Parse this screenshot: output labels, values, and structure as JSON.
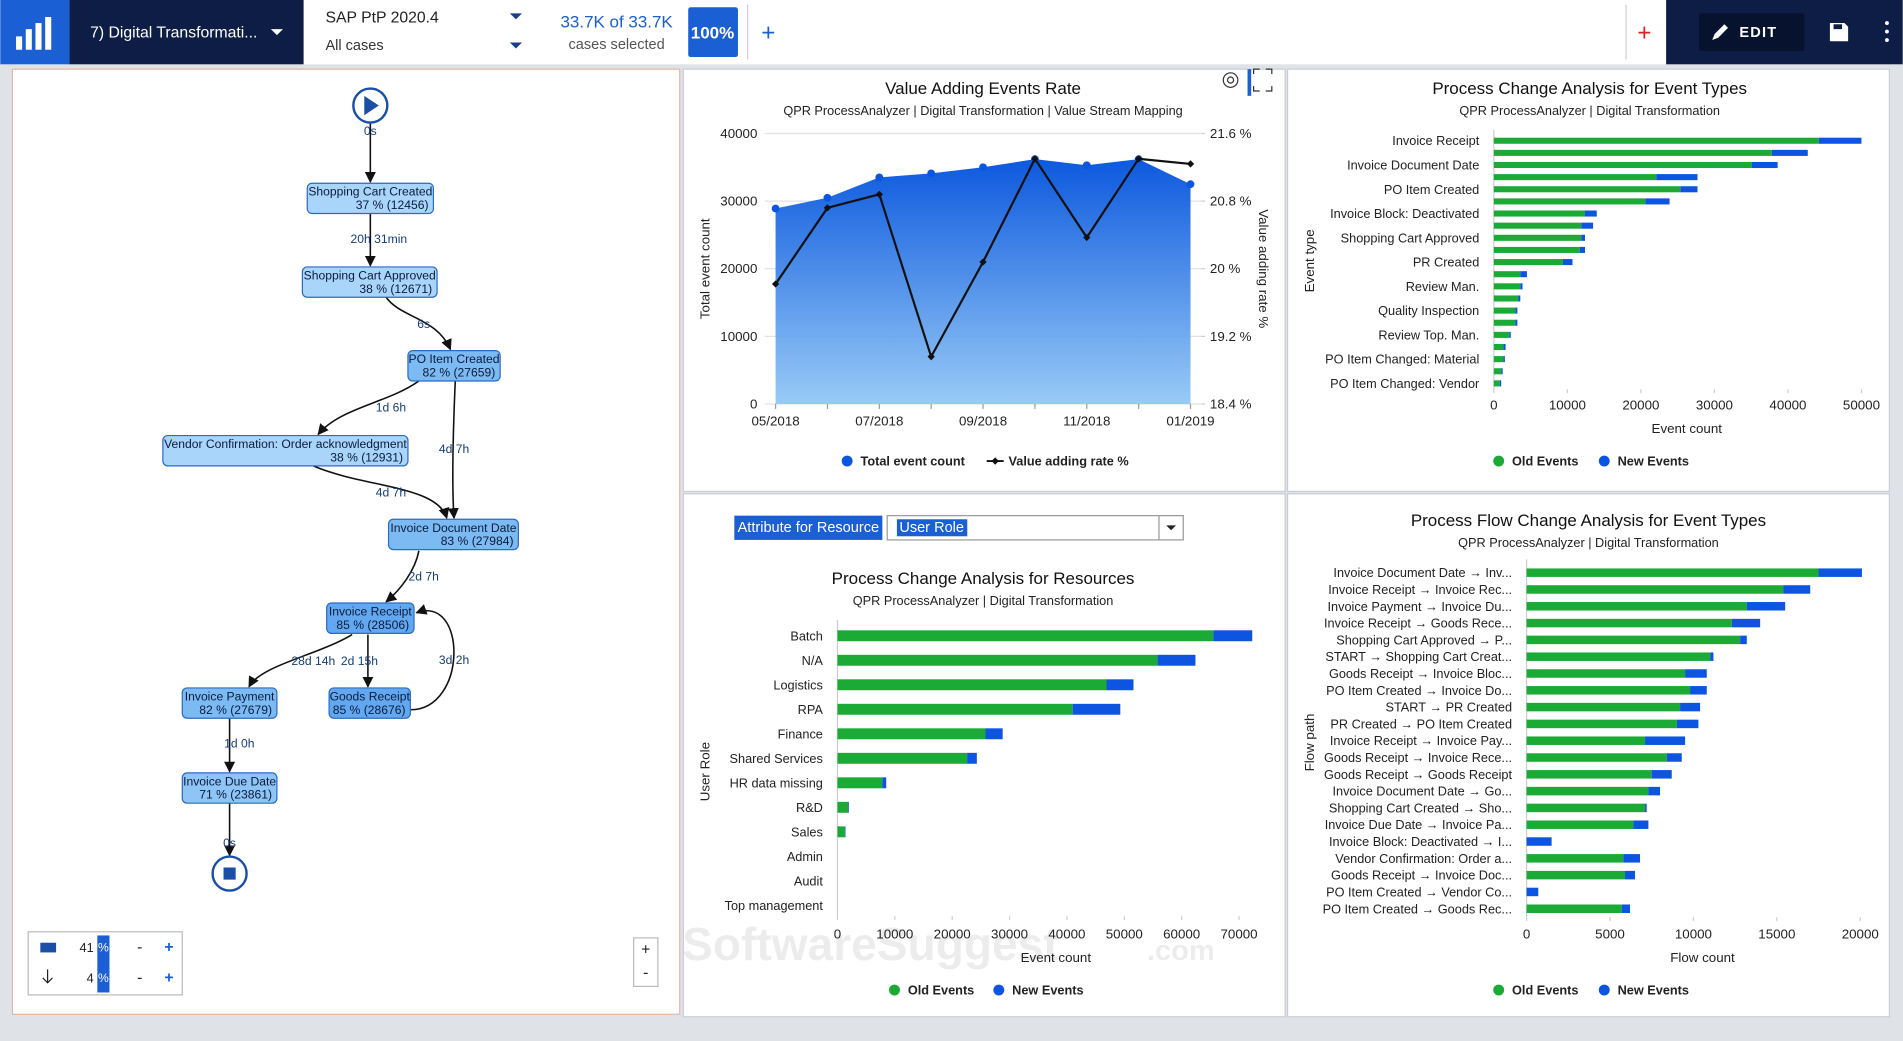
{
  "toolbar": {
    "dashboard": "7) Digital Transformati...",
    "model": "SAP PtP 2020.4",
    "filter": "All cases",
    "selection": "33.7K of 33.7K",
    "selection_caption": "cases selected",
    "selection_percent": "100%",
    "add": "+",
    "add_red": "+",
    "edit": "EDIT"
  },
  "process_map": {
    "nodes": [
      {
        "label": "Shopping Cart Created",
        "stat": "37 % (12456)"
      },
      {
        "label": "Shopping Cart Approved",
        "stat": "38 % (12671)"
      },
      {
        "label": "PO Item Created",
        "stat": "82 % (27659)"
      },
      {
        "label": "Vendor Confirmation: Order acknowledgment",
        "stat": "38 % (12931)"
      },
      {
        "label": "Invoice Document Date",
        "stat": "83 % (27984)"
      },
      {
        "label": "Invoice Receipt",
        "stat": "85 % (28506)"
      },
      {
        "label": "Invoice Payment",
        "stat": "82 % (27679)"
      },
      {
        "label": "Goods Receipt",
        "stat": "85 % (28676)"
      },
      {
        "label": "Invoice Due Date",
        "stat": "71 % (23861)"
      }
    ],
    "edge_labels": [
      "0s",
      "20h 31min",
      "6s",
      "1d 6h",
      "4d 7h",
      "4d 7h",
      "2d 7h",
      "28d 14h",
      "2d 15h",
      "3d 2h",
      "1d 0h",
      "0s"
    ],
    "zoom": {
      "level": "41",
      "detail": "4",
      "unit": "%",
      "minus": "-",
      "plus": "+"
    },
    "zoom_in": "+",
    "zoom_out": "-"
  },
  "resource_filter": {
    "label": "Attribute for Resource",
    "value": "User Role"
  },
  "watermark": {
    "text": "SoftwareSuggest",
    "suffix": ".com"
  },
  "chart_data": [
    {
      "type": "combo",
      "title": "Value Adding Events Rate",
      "subtitle": "QPR ProcessAnalyzer | Digital Transformation | Value Stream Mapping",
      "categories": [
        "05/2018",
        null,
        "07/2018",
        null,
        "09/2018",
        null,
        "11/2018",
        null,
        "01/2019"
      ],
      "y_label": "Total event count",
      "y2_label": "Value adding rate %",
      "series": [
        {
          "name": "Total event count",
          "kind": "area",
          "color": "#0a56e0",
          "values": [
            28900,
            30500,
            33500,
            34100,
            35000,
            36200,
            35300,
            36200,
            32500
          ]
        },
        {
          "name": "Value adding rate %",
          "kind": "line",
          "axis": "y2",
          "color": "#111111",
          "values": [
            19.82,
            20.72,
            20.88,
            18.96,
            20.08,
            21.3,
            20.37,
            21.3,
            21.24
          ]
        }
      ],
      "ylim": [
        0,
        40000
      ],
      "yticks": [
        0,
        10000,
        20000,
        30000,
        40000
      ],
      "y2lim": [
        18.4,
        21.6
      ],
      "y2ticks": [
        {
          "value": 18.4,
          "label": "18.4 %"
        },
        {
          "value": 19.2,
          "label": "19.2 %"
        },
        {
          "value": 20,
          "label": "20 %"
        },
        {
          "value": 20.8,
          "label": "20.8 %"
        },
        {
          "value": 21.6,
          "label": "21.6 %"
        }
      ],
      "grid": true,
      "legend": "bottom"
    },
    {
      "type": "bar",
      "orientation": "horizontal",
      "stacked": true,
      "title": "Process Change Analysis for Event Types",
      "subtitle": "QPR ProcessAnalyzer | Digital Transformation",
      "x_label": "Event count",
      "y_label": "Event type",
      "categories": [
        "Invoice Receipt",
        null,
        "Invoice Document Date",
        null,
        "PO Item Created",
        null,
        "Invoice Block: Deactivated",
        null,
        "Shopping Cart Approved",
        null,
        "PR Created",
        null,
        "Review Man.",
        null,
        "Quality Inspection",
        null,
        "Review Top. Man.",
        null,
        "PO Item Changed: Material",
        null,
        "PO Item Changed: Vendor"
      ],
      "series": [
        {
          "name": "Old Events",
          "color": "#1aaa35",
          "values": [
            44200,
            37800,
            35100,
            22100,
            25400,
            20600,
            12400,
            11900,
            11900,
            11700,
            9400,
            3600,
            3600,
            3300,
            2900,
            2900,
            2100,
            1300,
            1300,
            1000,
            800
          ]
        },
        {
          "name": "New Events",
          "color": "#0d55e1",
          "values": [
            5800,
            4900,
            3500,
            5600,
            2300,
            3300,
            1600,
            1600,
            500,
            700,
            1300,
            900,
            300,
            300,
            300,
            300,
            200,
            300,
            200,
            200,
            200
          ]
        }
      ],
      "xlim": [
        0,
        50000
      ],
      "xticks": [
        0,
        10000,
        20000,
        30000,
        40000,
        50000
      ],
      "grid": false,
      "legend": "bottom"
    },
    {
      "type": "bar",
      "orientation": "horizontal",
      "stacked": true,
      "title": "Process Change Analysis for Resources",
      "subtitle": "QPR ProcessAnalyzer | Digital Transformation",
      "x_label": "Event count",
      "y_label": "User Role",
      "categories": [
        "Batch",
        "N/A",
        "Logistics",
        "RPA",
        "Finance",
        "Shared Services",
        "HR data missing",
        "R&D",
        "Sales",
        "Admin",
        "Audit",
        "Top management"
      ],
      "series": [
        {
          "name": "Old Events",
          "color": "#1aaa35",
          "values": [
            65500,
            55800,
            46900,
            41000,
            25800,
            22600,
            7800,
            1900,
            1300,
            0,
            0,
            0
          ]
        },
        {
          "name": "New Events",
          "color": "#0d55e1",
          "values": [
            6800,
            6600,
            4700,
            8300,
            3000,
            1700,
            700,
            100,
            100,
            0,
            0,
            0
          ]
        }
      ],
      "xlim": [
        0,
        70000
      ],
      "xticks": [
        0,
        10000,
        20000,
        30000,
        40000,
        50000,
        60000,
        70000
      ],
      "grid": false,
      "legend": "bottom"
    },
    {
      "type": "bar",
      "orientation": "horizontal",
      "stacked": true,
      "title": "Process Flow Change Analysis for Event Types",
      "subtitle": "QPR ProcessAnalyzer | Digital Transformation",
      "x_label": "Flow count",
      "y_label": "Flow path",
      "categories": [
        "Invoice Document Date → Inv...",
        "Invoice Receipt → Invoice Rec...",
        "Invoice Payment → Invoice Du...",
        "Invoice Receipt → Goods Rece...",
        "Shopping Cart Approved → P...",
        "START → Shopping Cart Creat...",
        "Goods Receipt → Invoice Bloc...",
        "PO Item Created → Invoice Do...",
        "START → PR Created",
        "PR Created → PO Item Created",
        "Invoice Receipt → Invoice Pay...",
        "Goods Receipt → Invoice Rece...",
        "Goods Receipt → Goods Receipt",
        "Invoice Document Date → Go...",
        "Shopping Cart Created → Sho...",
        "Invoice Due Date → Invoice Pa...",
        "Invoice Block: Deactivated → I...",
        "Vendor Confirmation: Order a...",
        "Goods Receipt → Invoice Doc...",
        "PO Item Created → Vendor Co...",
        "PO Item Created → Goods Rec..."
      ],
      "series": [
        {
          "name": "Old Events",
          "color": "#1aaa35",
          "values": [
            17500,
            15400,
            13200,
            12300,
            12800,
            11000,
            9500,
            9800,
            9200,
            9000,
            7100,
            8400,
            7500,
            7300,
            7100,
            6400,
            0,
            5800,
            5900,
            0,
            5700
          ]
        },
        {
          "name": "New Events",
          "color": "#0d55e1",
          "values": [
            2600,
            1600,
            2300,
            1700,
            400,
            200,
            1300,
            1000,
            1200,
            1300,
            2400,
            900,
            1200,
            700,
            100,
            900,
            1500,
            1000,
            600,
            700,
            500
          ]
        }
      ],
      "xlim": [
        0,
        20000
      ],
      "xticks": [
        0,
        5000,
        10000,
        15000,
        20000
      ],
      "grid": false,
      "legend": "bottom"
    }
  ]
}
